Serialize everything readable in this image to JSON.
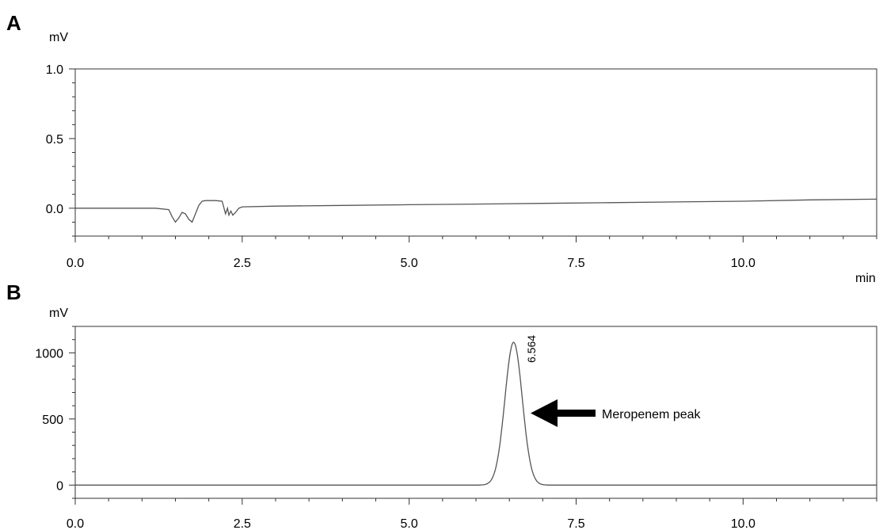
{
  "chart_data": [
    {
      "type": "line",
      "panel_label": "A",
      "ylabel": "mV",
      "xlabel": "min",
      "xlim": [
        0,
        12.0
      ],
      "ylim": [
        -0.2,
        1.0
      ],
      "x_ticks": [
        0.0,
        2.5,
        5.0,
        7.5,
        10.0
      ],
      "x_tick_labels": [
        "0.0",
        "2.5",
        "5.0",
        "7.5",
        "10.0"
      ],
      "y_ticks": [
        0.0,
        0.5,
        1.0
      ],
      "y_tick_labels": [
        "0.0",
        "0.5",
        "1.0"
      ],
      "grid": false,
      "series": [
        {
          "color": "#555555",
          "x": [
            0.0,
            1.2,
            1.4,
            1.45,
            1.5,
            1.55,
            1.6,
            1.65,
            1.7,
            1.75,
            1.8,
            1.85,
            1.9,
            1.95,
            2.0,
            2.1,
            2.2,
            2.25,
            2.28,
            2.3,
            2.33,
            2.36,
            2.4,
            2.45,
            2.5,
            3.0,
            4.0,
            5.0,
            6.0,
            7.0,
            8.0,
            9.0,
            10.0,
            11.0,
            12.0
          ],
          "y": [
            0.0,
            0.0,
            -0.01,
            -0.06,
            -0.1,
            -0.07,
            -0.03,
            -0.04,
            -0.08,
            -0.1,
            -0.04,
            0.02,
            0.05,
            0.055,
            0.055,
            0.055,
            0.05,
            -0.04,
            0.0,
            -0.05,
            -0.02,
            -0.05,
            -0.03,
            0.0,
            0.01,
            0.015,
            0.02,
            0.025,
            0.03,
            0.035,
            0.04,
            0.045,
            0.05,
            0.06,
            0.065
          ]
        }
      ]
    },
    {
      "type": "line",
      "panel_label": "B",
      "ylabel": "mV",
      "xlim": [
        0,
        12.0
      ],
      "ylim": [
        -100,
        1200
      ],
      "x_ticks": [
        0.0,
        2.5,
        5.0,
        7.5,
        10.0
      ],
      "x_tick_labels": [
        "0.0",
        "2.5",
        "5.0",
        "7.5",
        "10.0"
      ],
      "y_ticks": [
        0,
        500,
        1000
      ],
      "y_tick_labels": [
        "0",
        "500",
        "1000"
      ],
      "grid": false,
      "series": [
        {
          "color": "#555555",
          "peak": {
            "x": 6.564,
            "y": 1080,
            "sigma": 0.13
          }
        }
      ],
      "peak_label": "6.564",
      "annotations": [
        {
          "text": "Meropenem peak",
          "x": 6.564,
          "y": 500
        }
      ]
    }
  ]
}
